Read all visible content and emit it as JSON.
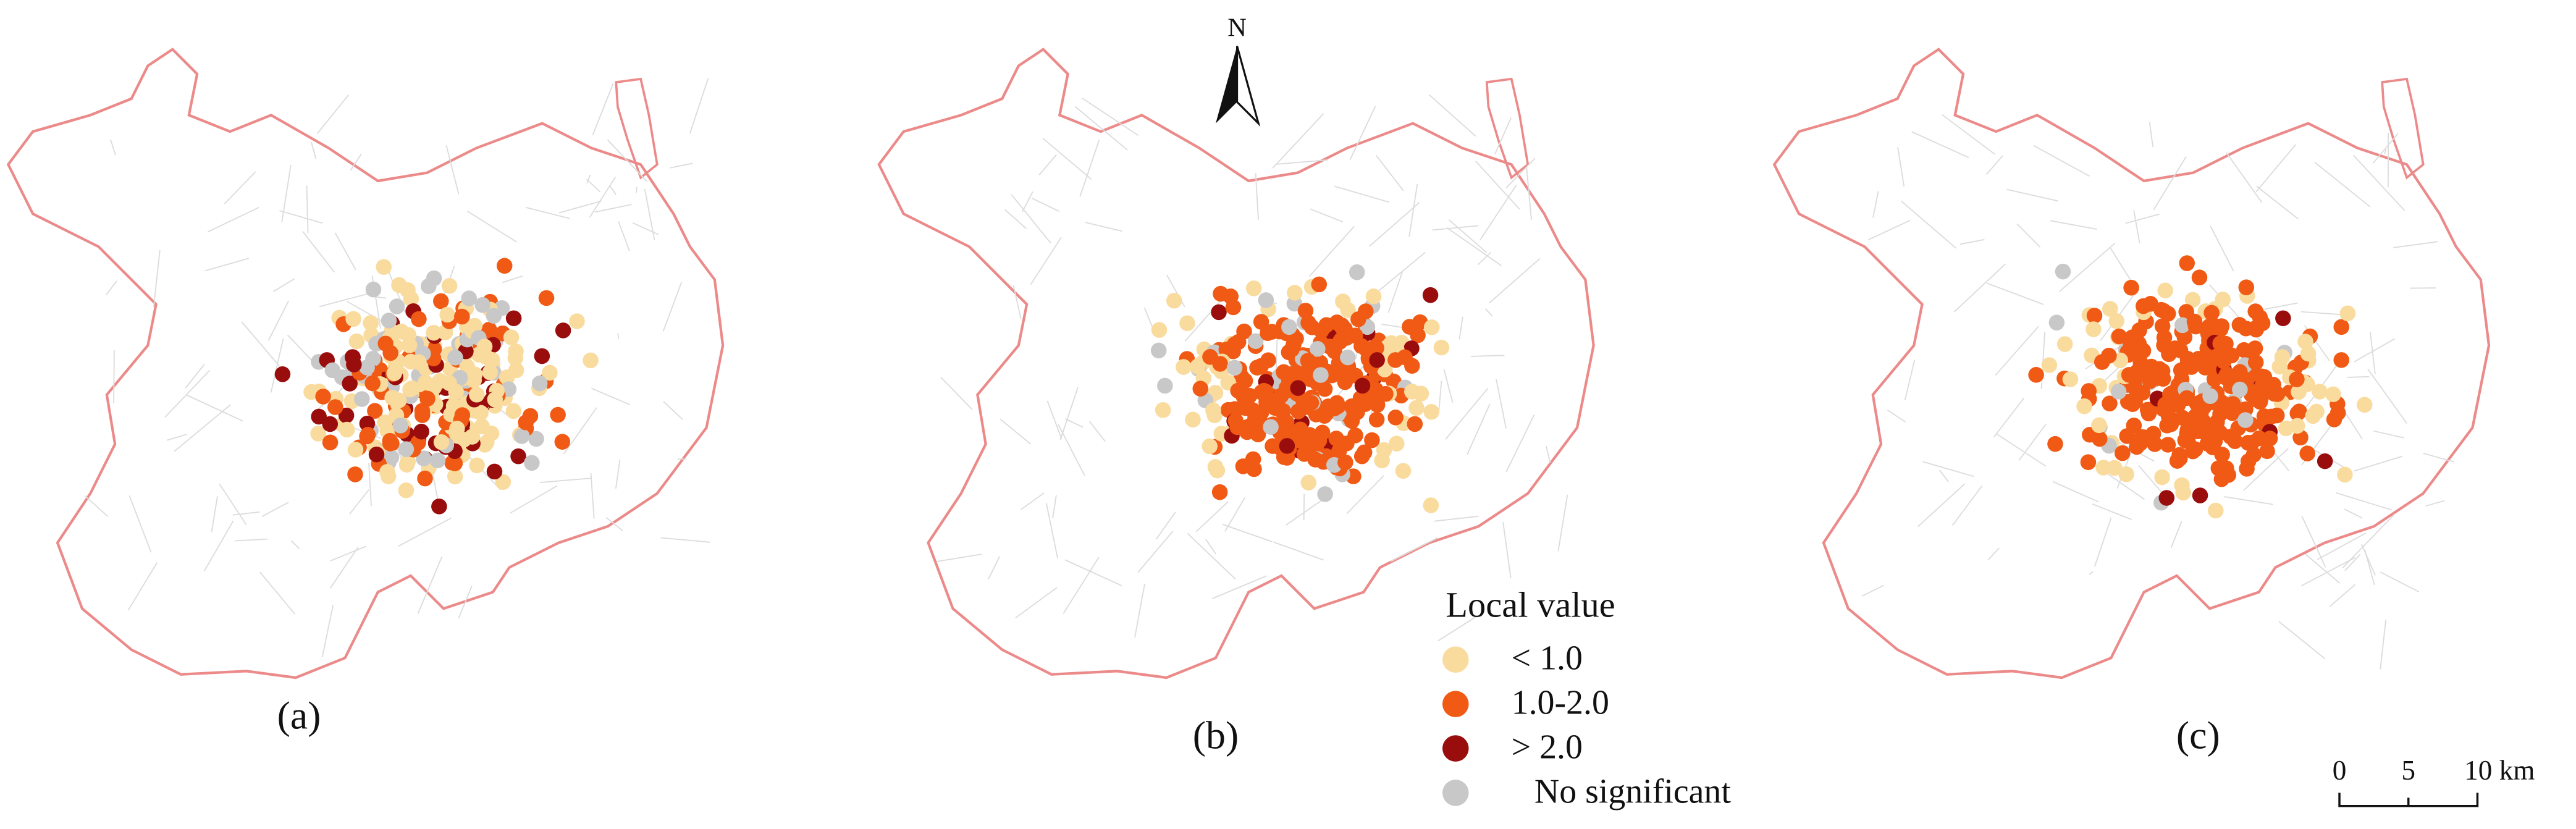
{
  "panels": [
    {
      "label": "(a)"
    },
    {
      "label": "(b)"
    },
    {
      "label": "(c)"
    }
  ],
  "north_arrow": {
    "label": "N"
  },
  "legend": {
    "title": "Local value",
    "items": [
      {
        "label": "< 1.0",
        "color": "#fadb9e"
      },
      {
        "label": "1.0-2.0",
        "color": "#f05a14"
      },
      {
        "label": "> 2.0",
        "color": "#9a0d0d"
      },
      {
        "label": "No significant",
        "color": "#c8c8c8"
      }
    ]
  },
  "scale_bar": {
    "labels": [
      "0",
      "5",
      "10 km"
    ]
  }
}
